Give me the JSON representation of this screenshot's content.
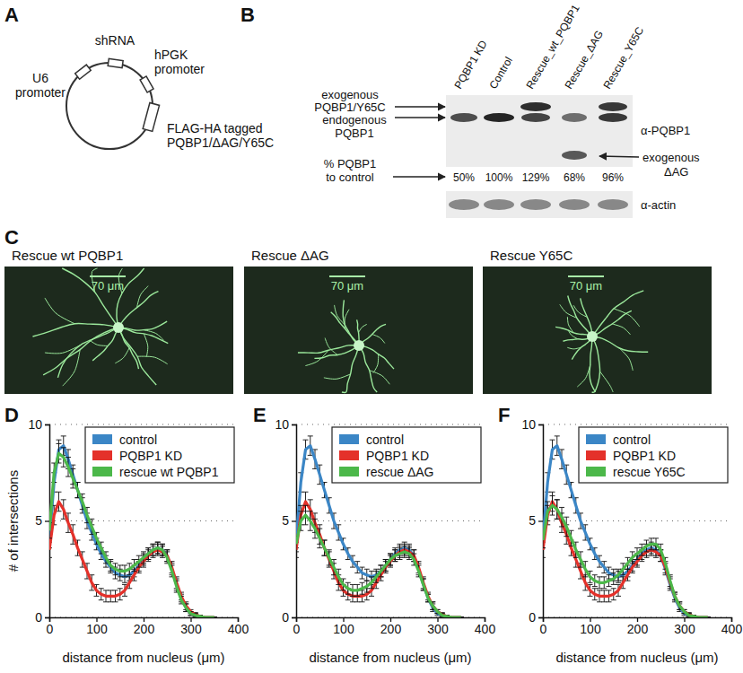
{
  "chart_data": [
    {
      "type": "line",
      "title": "D",
      "x_label": "distance from nucleus (μm)",
      "y_label": "# of intersections",
      "x": [
        0,
        10,
        20,
        30,
        40,
        50,
        60,
        70,
        80,
        90,
        100,
        110,
        120,
        130,
        140,
        150,
        160,
        170,
        180,
        190,
        200,
        210,
        220,
        230,
        240,
        250,
        260,
        270,
        280,
        290,
        300,
        310,
        320,
        330,
        340,
        350
      ],
      "xlim": [
        0,
        400
      ],
      "xticks": [
        0,
        100,
        200,
        300,
        400
      ],
      "ylim": [
        0,
        10
      ],
      "yticks": [
        0,
        5,
        10
      ],
      "grid": true,
      "legend": "top",
      "series": [
        {
          "name": "control",
          "color": "#3b86c6",
          "values": [
            4.0,
            7.0,
            8.7,
            8.9,
            8.2,
            7.4,
            6.6,
            5.8,
            5.0,
            4.4,
            3.8,
            3.3,
            2.9,
            2.6,
            2.3,
            2.2,
            2.1,
            2.2,
            2.4,
            2.7,
            3.0,
            3.3,
            3.5,
            3.6,
            3.5,
            3.2,
            2.5,
            1.7,
            1.0,
            0.5,
            0.2,
            0.1,
            0.05,
            0,
            0,
            0
          ],
          "errors": [
            0.4,
            0.5,
            0.5,
            0.5,
            0.5,
            0.5,
            0.4,
            0.4,
            0.4,
            0.4,
            0.3,
            0.3,
            0.3,
            0.3,
            0.3,
            0.3,
            0.3,
            0.3,
            0.3,
            0.3,
            0.3,
            0.3,
            0.3,
            0.3,
            0.3,
            0.3,
            0.3,
            0.3,
            0.2,
            0.2,
            0.1,
            0.1,
            0.05,
            0,
            0,
            0
          ]
        },
        {
          "name": "PQBP1 KD",
          "color": "#e4312a",
          "values": [
            3.5,
            5.3,
            6.0,
            5.6,
            4.9,
            4.3,
            3.6,
            3.0,
            2.4,
            1.8,
            1.4,
            1.2,
            1.1,
            1.1,
            1.1,
            1.2,
            1.4,
            1.8,
            2.2,
            2.6,
            2.9,
            3.2,
            3.4,
            3.5,
            3.4,
            3.2,
            2.6,
            1.8,
            1.1,
            0.6,
            0.3,
            0.15,
            0.05,
            0,
            0,
            0
          ],
          "errors": [
            0.4,
            0.5,
            0.5,
            0.5,
            0.5,
            0.5,
            0.4,
            0.4,
            0.4,
            0.4,
            0.3,
            0.3,
            0.3,
            0.3,
            0.3,
            0.3,
            0.3,
            0.3,
            0.3,
            0.3,
            0.3,
            0.3,
            0.3,
            0.3,
            0.3,
            0.3,
            0.3,
            0.3,
            0.2,
            0.2,
            0.1,
            0.1,
            0.05,
            0,
            0,
            0
          ]
        },
        {
          "name": "rescue wt PQBP1",
          "color": "#4cb84a",
          "values": [
            4.5,
            7.5,
            8.5,
            8.3,
            7.8,
            7.2,
            6.6,
            6.0,
            5.3,
            4.7,
            4.1,
            3.6,
            3.1,
            2.7,
            2.5,
            2.4,
            2.4,
            2.5,
            2.7,
            2.9,
            3.1,
            3.3,
            3.5,
            3.6,
            3.5,
            3.1,
            2.4,
            1.6,
            0.9,
            0.5,
            0.2,
            0.1,
            0.05,
            0,
            0,
            0
          ],
          "errors": [
            0.4,
            0.5,
            0.5,
            0.5,
            0.5,
            0.5,
            0.4,
            0.4,
            0.4,
            0.4,
            0.3,
            0.3,
            0.3,
            0.3,
            0.3,
            0.3,
            0.3,
            0.3,
            0.3,
            0.3,
            0.3,
            0.3,
            0.3,
            0.3,
            0.3,
            0.3,
            0.3,
            0.3,
            0.2,
            0.2,
            0.1,
            0.1,
            0.05,
            0,
            0,
            0
          ]
        }
      ]
    },
    {
      "type": "line",
      "title": "E",
      "x_label": "distance from nucleus (μm)",
      "x": [
        0,
        10,
        20,
        30,
        40,
        50,
        60,
        70,
        80,
        90,
        100,
        110,
        120,
        130,
        140,
        150,
        160,
        170,
        180,
        190,
        200,
        210,
        220,
        230,
        240,
        250,
        260,
        270,
        280,
        290,
        300,
        310,
        320,
        330,
        340,
        350
      ],
      "xlim": [
        0,
        400
      ],
      "xticks": [
        0,
        100,
        200,
        300,
        400
      ],
      "ylim": [
        0,
        10
      ],
      "yticks": [
        0,
        5,
        10
      ],
      "grid": true,
      "legend": "top",
      "series": [
        {
          "name": "control",
          "color": "#3b86c6",
          "values": [
            4.0,
            7.0,
            8.7,
            8.9,
            8.2,
            7.4,
            6.6,
            5.8,
            5.0,
            4.4,
            3.8,
            3.3,
            2.9,
            2.6,
            2.3,
            2.2,
            2.1,
            2.2,
            2.4,
            2.7,
            3.0,
            3.3,
            3.5,
            3.6,
            3.5,
            3.2,
            2.5,
            1.7,
            1.0,
            0.5,
            0.2,
            0.1,
            0.05,
            0,
            0,
            0
          ],
          "errors": [
            0.4,
            0.5,
            0.5,
            0.5,
            0.5,
            0.5,
            0.4,
            0.4,
            0.4,
            0.4,
            0.3,
            0.3,
            0.3,
            0.3,
            0.3,
            0.3,
            0.3,
            0.3,
            0.3,
            0.3,
            0.3,
            0.3,
            0.3,
            0.3,
            0.3,
            0.3,
            0.3,
            0.3,
            0.2,
            0.2,
            0.1,
            0.1,
            0.05,
            0,
            0,
            0
          ]
        },
        {
          "name": "PQBP1 KD",
          "color": "#e4312a",
          "values": [
            3.5,
            5.3,
            6.0,
            5.6,
            4.9,
            4.3,
            3.6,
            3.0,
            2.4,
            1.8,
            1.4,
            1.2,
            1.1,
            1.1,
            1.1,
            1.2,
            1.4,
            1.8,
            2.2,
            2.6,
            2.9,
            3.2,
            3.4,
            3.5,
            3.4,
            3.2,
            2.6,
            1.8,
            1.1,
            0.6,
            0.3,
            0.15,
            0.05,
            0,
            0,
            0
          ],
          "errors": [
            0.4,
            0.5,
            0.5,
            0.5,
            0.5,
            0.5,
            0.4,
            0.4,
            0.4,
            0.4,
            0.3,
            0.3,
            0.3,
            0.3,
            0.3,
            0.3,
            0.3,
            0.3,
            0.3,
            0.3,
            0.3,
            0.3,
            0.3,
            0.3,
            0.3,
            0.3,
            0.3,
            0.3,
            0.2,
            0.2,
            0.1,
            0.1,
            0.05,
            0,
            0,
            0
          ]
        },
        {
          "name": "rescue ΔAG",
          "color": "#4cb84a",
          "values": [
            3.8,
            5.0,
            5.3,
            5.0,
            4.6,
            4.1,
            3.6,
            3.1,
            2.6,
            2.1,
            1.7,
            1.5,
            1.4,
            1.4,
            1.5,
            1.6,
            1.8,
            2.1,
            2.4,
            2.7,
            3.0,
            3.2,
            3.3,
            3.4,
            3.3,
            3.0,
            2.4,
            1.7,
            1.0,
            0.6,
            0.3,
            0.1,
            0.05,
            0,
            0,
            0
          ],
          "errors": [
            0.4,
            0.5,
            0.5,
            0.5,
            0.5,
            0.5,
            0.4,
            0.4,
            0.4,
            0.4,
            0.3,
            0.3,
            0.3,
            0.3,
            0.3,
            0.3,
            0.3,
            0.3,
            0.3,
            0.3,
            0.3,
            0.3,
            0.3,
            0.3,
            0.3,
            0.3,
            0.3,
            0.3,
            0.2,
            0.2,
            0.1,
            0.1,
            0.05,
            0,
            0,
            0
          ]
        }
      ]
    },
    {
      "type": "line",
      "title": "F",
      "x_label": "distance from nucleus (μm)",
      "x": [
        0,
        10,
        20,
        30,
        40,
        50,
        60,
        70,
        80,
        90,
        100,
        110,
        120,
        130,
        140,
        150,
        160,
        170,
        180,
        190,
        200,
        210,
        220,
        230,
        240,
        250,
        260,
        270,
        280,
        290,
        300,
        310,
        320,
        330,
        340,
        350
      ],
      "xlim": [
        0,
        400
      ],
      "xticks": [
        0,
        100,
        200,
        300,
        400
      ],
      "ylim": [
        0,
        10
      ],
      "yticks": [
        0,
        5,
        10
      ],
      "grid": true,
      "legend": "top",
      "series": [
        {
          "name": "control",
          "color": "#3b86c6",
          "values": [
            4.0,
            7.0,
            8.7,
            8.9,
            8.2,
            7.4,
            6.6,
            5.8,
            5.0,
            4.4,
            3.8,
            3.3,
            2.9,
            2.6,
            2.3,
            2.2,
            2.1,
            2.2,
            2.4,
            2.7,
            3.0,
            3.3,
            3.5,
            3.6,
            3.5,
            3.2,
            2.5,
            1.7,
            1.0,
            0.5,
            0.2,
            0.1,
            0.05,
            0,
            0,
            0
          ],
          "errors": [
            0.4,
            0.5,
            0.5,
            0.5,
            0.5,
            0.5,
            0.4,
            0.4,
            0.4,
            0.4,
            0.3,
            0.3,
            0.3,
            0.3,
            0.3,
            0.3,
            0.3,
            0.3,
            0.3,
            0.3,
            0.3,
            0.3,
            0.3,
            0.3,
            0.3,
            0.3,
            0.3,
            0.3,
            0.2,
            0.2,
            0.1,
            0.1,
            0.05,
            0,
            0,
            0
          ]
        },
        {
          "name": "PQBP1 KD",
          "color": "#e4312a",
          "values": [
            3.5,
            5.3,
            6.0,
            5.6,
            4.9,
            4.3,
            3.6,
            3.0,
            2.4,
            1.8,
            1.4,
            1.2,
            1.1,
            1.1,
            1.1,
            1.2,
            1.4,
            1.8,
            2.2,
            2.6,
            2.9,
            3.2,
            3.4,
            3.5,
            3.4,
            3.2,
            2.6,
            1.8,
            1.1,
            0.6,
            0.3,
            0.15,
            0.05,
            0,
            0,
            0
          ],
          "errors": [
            0.4,
            0.5,
            0.5,
            0.5,
            0.5,
            0.5,
            0.4,
            0.4,
            0.4,
            0.4,
            0.3,
            0.3,
            0.3,
            0.3,
            0.3,
            0.3,
            0.3,
            0.3,
            0.3,
            0.3,
            0.3,
            0.3,
            0.3,
            0.3,
            0.3,
            0.3,
            0.3,
            0.3,
            0.2,
            0.2,
            0.1,
            0.1,
            0.05,
            0,
            0,
            0
          ]
        },
        {
          "name": "rescue Y65C",
          "color": "#4cb84a",
          "values": [
            4.0,
            5.5,
            5.8,
            5.6,
            5.2,
            4.7,
            4.1,
            3.5,
            3.0,
            2.5,
            2.1,
            1.9,
            1.8,
            1.8,
            1.9,
            2.0,
            2.2,
            2.5,
            2.8,
            3.1,
            3.3,
            3.5,
            3.7,
            3.8,
            3.8,
            3.5,
            2.8,
            1.9,
            1.1,
            0.6,
            0.3,
            0.1,
            0.05,
            0,
            0,
            0
          ],
          "errors": [
            0.4,
            0.5,
            0.5,
            0.5,
            0.5,
            0.5,
            0.4,
            0.4,
            0.4,
            0.4,
            0.3,
            0.3,
            0.3,
            0.3,
            0.3,
            0.3,
            0.3,
            0.3,
            0.3,
            0.3,
            0.3,
            0.3,
            0.3,
            0.3,
            0.3,
            0.3,
            0.3,
            0.3,
            0.2,
            0.2,
            0.1,
            0.1,
            0.05,
            0,
            0,
            0
          ]
        }
      ]
    }
  ],
  "panel_a": {
    "label": "A",
    "promoter_1": [
      "U6",
      "promoter"
    ],
    "insert": "shRNA",
    "promoter_2": [
      "hPGK",
      "promoter"
    ],
    "tag": [
      "FLAG-HA tagged",
      "PQBP1/ΔAG/Y65C"
    ]
  },
  "panel_b": {
    "label": "B",
    "lanes": [
      "PQBP1 KD",
      "Control",
      "Rescue_wt_PQBP1",
      "Rescue_ΔAG",
      "Rescue_Y65C"
    ],
    "exogenous_label": [
      "exogenous",
      "PQBP1/Y65C"
    ],
    "endogenous_label": [
      "endogenous",
      "PQBP1"
    ],
    "percent_label": [
      "% PQBP1",
      "to control"
    ],
    "percent_to_control": [
      "50%",
      "100%",
      "129%",
      "68%",
      "96%"
    ],
    "antibodies": [
      "α-PQBP1",
      "α-actin"
    ],
    "delta_ag_label": [
      "exogenous",
      "ΔAG"
    ]
  },
  "panel_c": {
    "label": "C",
    "images": [
      {
        "title": "Rescue wt PQBP1",
        "scale_bar": "70 μm"
      },
      {
        "title": "Rescue ΔAG",
        "scale_bar": "70 μm"
      },
      {
        "title": "Rescue Y65C",
        "scale_bar": "70 μm"
      }
    ]
  }
}
